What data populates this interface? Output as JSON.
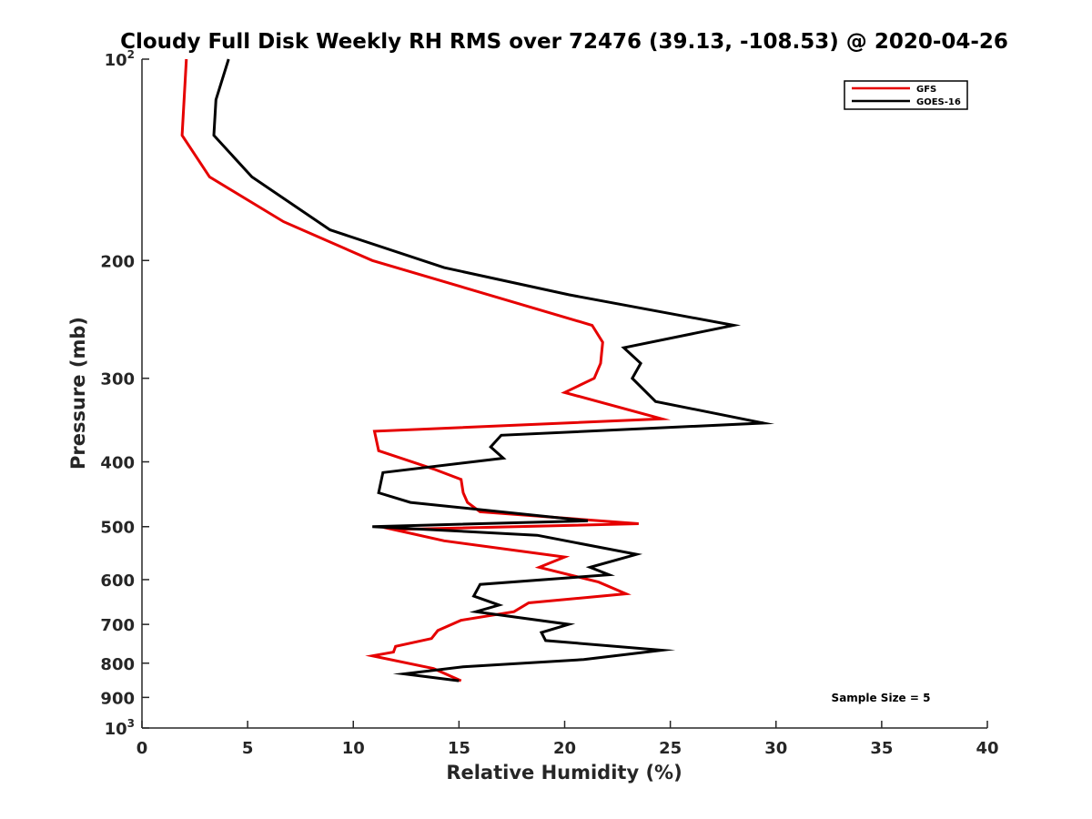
{
  "chart_data": {
    "type": "line",
    "title": "Cloudy Full Disk Weekly RH RMS over 72476 (39.13, -108.53) @ 2020-04-26",
    "xlabel": "Relative Humidity (%)",
    "ylabel": "Pressure (mb)",
    "xlim": [
      0,
      40
    ],
    "ylim": [
      100,
      1000
    ],
    "y_scale": "log",
    "y_reversed": true,
    "grid": false,
    "legend_position": "top-right",
    "x_ticks": [
      "0",
      "5",
      "10",
      "15",
      "20",
      "25",
      "30",
      "35",
      "40"
    ],
    "y_ticks": [
      {
        "value": 100,
        "label": "10",
        "sup": "2"
      },
      {
        "value": 200,
        "label": "200",
        "sup": ""
      },
      {
        "value": 300,
        "label": "300",
        "sup": ""
      },
      {
        "value": 400,
        "label": "400",
        "sup": ""
      },
      {
        "value": 500,
        "label": "500",
        "sup": ""
      },
      {
        "value": 600,
        "label": "600",
        "sup": ""
      },
      {
        "value": 700,
        "label": "700",
        "sup": ""
      },
      {
        "value": 800,
        "label": "800",
        "sup": ""
      },
      {
        "value": 900,
        "label": "900",
        "sup": ""
      },
      {
        "value": 1000,
        "label": "10",
        "sup": "3"
      }
    ],
    "series": [
      {
        "name": "GFS",
        "color": "#e60000",
        "x": [
          2.1,
          1.9,
          3.2,
          6.7,
          10.9,
          21.3,
          21.8,
          21.7,
          21.4,
          20.0,
          24.6,
          11.0,
          11.2,
          13.8,
          15.1,
          15.2,
          15.4,
          16.0,
          23.5,
          11.9,
          14.3,
          20.0,
          18.8,
          21.6,
          22.9,
          18.3,
          17.6,
          15.1,
          14.0,
          13.7,
          12.0,
          11.9,
          10.9,
          13.8,
          15.1
        ],
        "y": [
          100,
          130,
          150,
          175,
          200,
          250,
          265,
          285,
          300,
          315,
          345,
          360,
          385,
          410,
          425,
          445,
          460,
          475,
          495,
          505,
          525,
          555,
          575,
          605,
          630,
          650,
          670,
          690,
          715,
          735,
          755,
          770,
          780,
          815,
          850
        ]
      },
      {
        "name": "GOES-16",
        "color": "#000000",
        "x": [
          4.1,
          3.5,
          3.4,
          5.2,
          8.9,
          14.3,
          20.2,
          28.0,
          22.8,
          23.6,
          23.2,
          24.3,
          29.4,
          17.0,
          16.5,
          17.1,
          11.4,
          11.2,
          12.7,
          21.1,
          10.9,
          18.7,
          23.4,
          21.2,
          22.1,
          16.0,
          15.7,
          16.9,
          15.8,
          20.2,
          18.9,
          19.1,
          24.6,
          20.9,
          15.2,
          12.4,
          15.0
        ],
        "y": [
          100,
          115,
          130,
          150,
          180,
          205,
          225,
          250,
          270,
          285,
          300,
          325,
          350,
          365,
          380,
          395,
          415,
          445,
          460,
          490,
          500,
          515,
          550,
          575,
          590,
          610,
          635,
          655,
          670,
          700,
          720,
          740,
          765,
          790,
          810,
          830,
          850
        ]
      }
    ],
    "annotations": [
      "Sample Size = 5"
    ]
  }
}
